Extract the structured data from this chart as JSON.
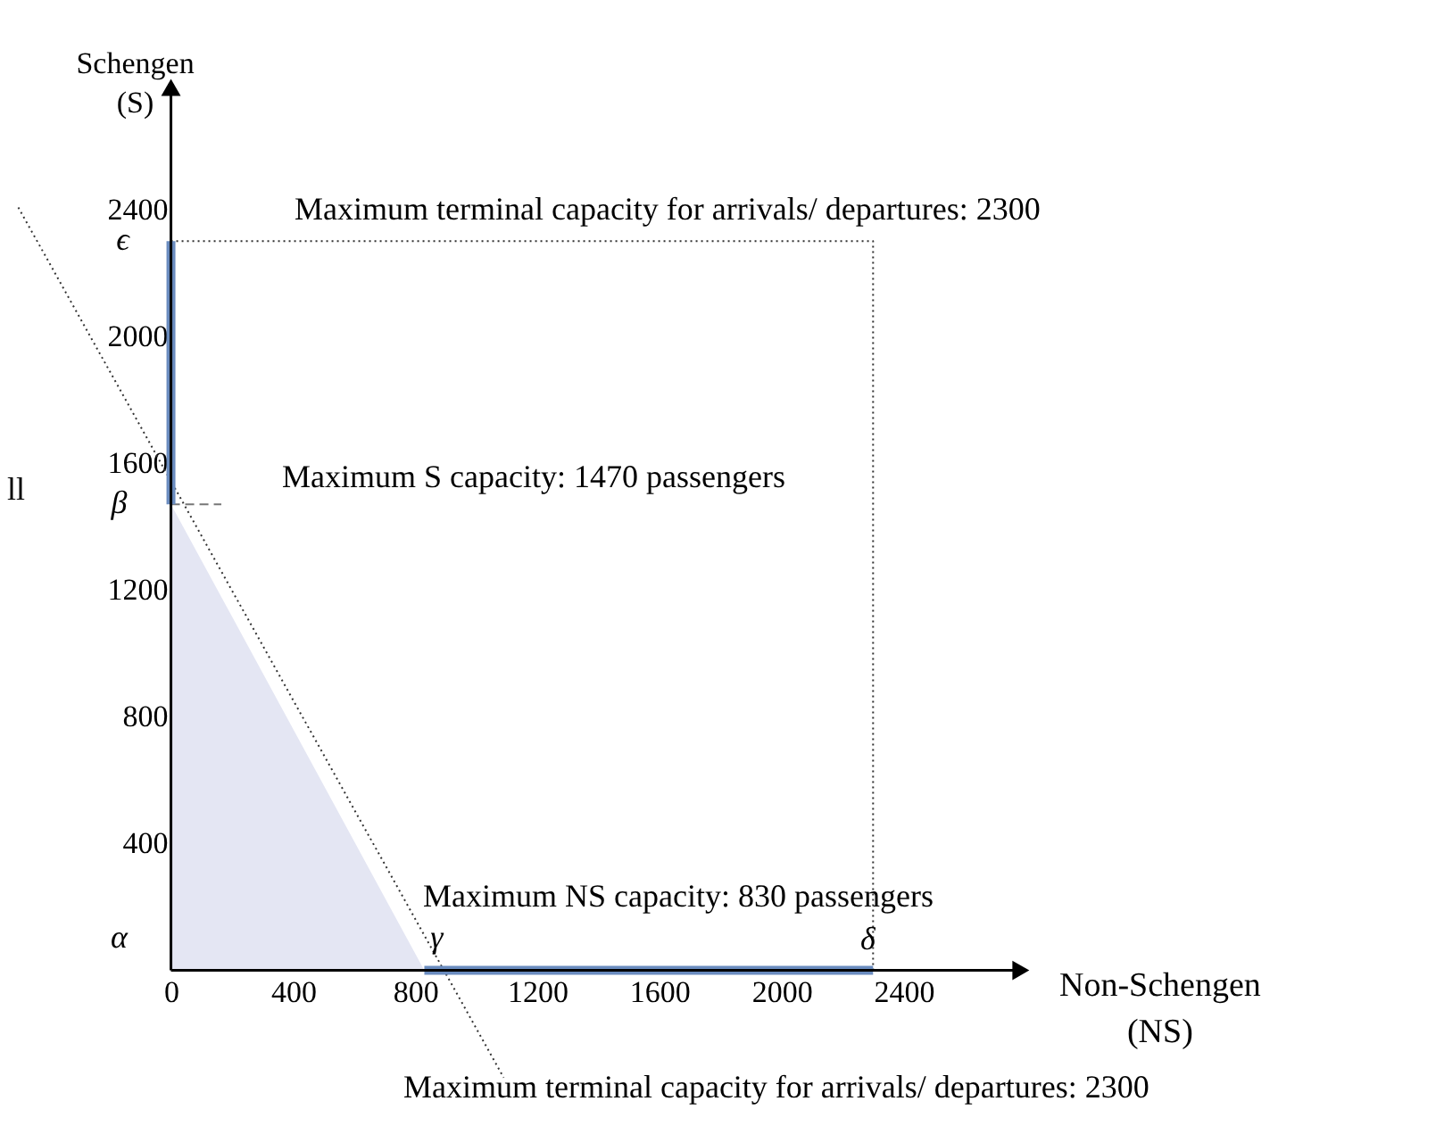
{
  "chart_data": {
    "type": "line",
    "xlabel": "Non-Schengen (NS)",
    "ylabel": "Schengen (S)",
    "xlim": [
      -560,
      4100
    ],
    "ylim": [
      -440,
      3060
    ],
    "xticks": [
      0,
      400,
      800,
      1200,
      1600,
      2000,
      2400
    ],
    "yticks": [
      400,
      800,
      1200,
      1600,
      2000,
      2400
    ],
    "grid": false,
    "series": [
      {
        "type": "area",
        "color": "#e4e6f3",
        "x": [
          0,
          830
        ],
        "values": [
          1470,
          0
        ]
      },
      {
        "color": "#333333",
        "line_style": "dotted",
        "x": [
          -500,
          1090
        ],
        "values": [
          2406,
          -338
        ]
      },
      {
        "color": "#333333",
        "line_style": "dotted",
        "x": [
          0,
          2300,
          2300
        ],
        "values": [
          2300,
          2300,
          0
        ]
      },
      {
        "color": "#777777",
        "line_style": "dashed",
        "x": [
          0,
          165
        ],
        "values": [
          1470,
          1470
        ]
      },
      {
        "color": "#6a8cbf",
        "line_style": "solid",
        "x": [
          0,
          0
        ],
        "values": [
          1470,
          2300
        ]
      },
      {
        "color": "#6a8cbf",
        "line_style": "solid",
        "x": [
          830,
          2300
        ],
        "values": [
          0,
          0
        ]
      }
    ],
    "annotations": [
      "Maximum terminal capacity for arrivals/ departures: 2300",
      "Maximum S capacity: 1470 passengers",
      "Maximum NS capacity: 830 passengers",
      "Maximum terminal capacity for arrivals/ departures: 2300",
      "ll",
      {
        "text": "α",
        "x": 0,
        "y": 0
      },
      {
        "text": "β",
        "x": 0,
        "y": 1470
      },
      {
        "text": "ϵ",
        "x": 0,
        "y": 2300
      },
      {
        "text": "γ",
        "x": 830,
        "y": 0
      },
      {
        "text": "δ",
        "x": 2300,
        "y": 0
      }
    ]
  }
}
